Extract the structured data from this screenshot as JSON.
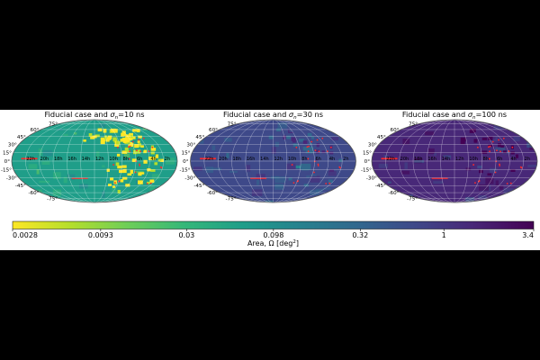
{
  "chart_data": {
    "type": "heatmap",
    "projection": "mollweide",
    "panels": [
      {
        "title_prefix": "Fiducial case and ",
        "sigma_symbol": "σ",
        "sigma_sub": "n",
        "sigma_value": "=10 ns",
        "level": 0
      },
      {
        "title_prefix": "Fiducial case and ",
        "sigma_symbol": "σ",
        "sigma_sub": "n",
        "sigma_value": "=30 ns",
        "level": 1
      },
      {
        "title_prefix": "Fiducial case and ",
        "sigma_symbol": "σ",
        "sigma_sub": "n",
        "sigma_value": "=100 ns",
        "level": 2
      }
    ],
    "latitude_labels": [
      "75°",
      "60°",
      "45°",
      "30°",
      "15°",
      "0°",
      "-15°",
      "-30°",
      "-45°",
      "-60°",
      "-75°"
    ],
    "latitude_values": [
      75,
      60,
      45,
      30,
      15,
      0,
      -15,
      -30,
      -45,
      -60,
      -75
    ],
    "ra_labels": [
      "22h",
      "20h",
      "18h",
      "16h",
      "14h",
      "12h",
      "10h",
      "8h",
      "6h",
      "4h",
      "2h"
    ],
    "colorbar": {
      "ticks": [
        "0.0028",
        "0.0093",
        "0.03",
        "0.098",
        "0.32",
        "1",
        "3.4"
      ],
      "label_main": "Area, Ω [deg",
      "label_sup": "2",
      "label_end": "]",
      "scale": "log",
      "range": [
        0.0028,
        3.4
      ]
    },
    "colors": {
      "viridis": [
        "#fde725",
        "#b5de2b",
        "#6ece58",
        "#35b779",
        "#1f9e89",
        "#26828e",
        "#31688e",
        "#3e4989",
        "#482878",
        "#440154"
      ],
      "marker": "#ff2a2a"
    }
  }
}
